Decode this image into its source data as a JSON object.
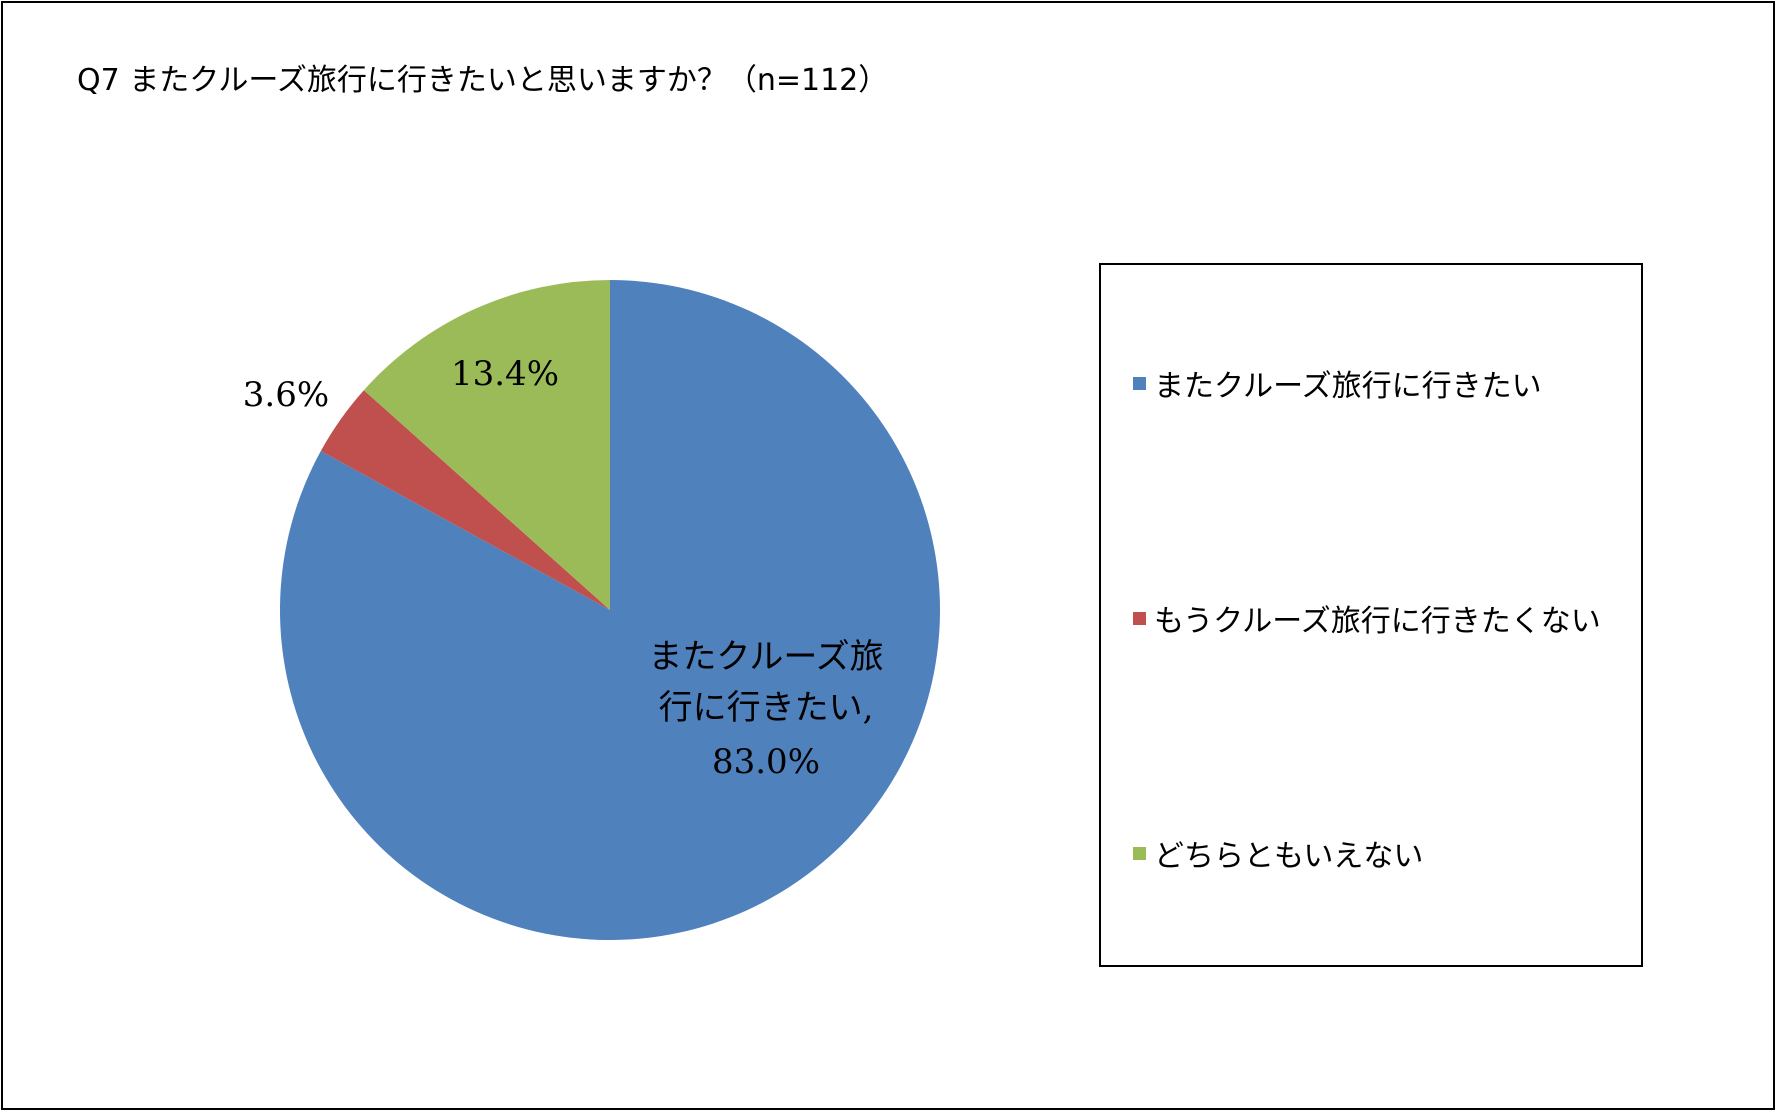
{
  "chart_data": {
    "type": "pie",
    "title": "Q7 またクルーズ旅行に行きたいと思いますか？（n=112）",
    "slices": [
      {
        "name": "またクルーズ旅行に行きたい",
        "value": 83.0,
        "label": "83.0%",
        "color": "#4F81BD"
      },
      {
        "name": "もうクルーズ旅行に行きたくない",
        "value": 3.6,
        "label": "3.6%",
        "color": "#C0504D"
      },
      {
        "name": "どちらともいえない",
        "value": 13.4,
        "label": "13.4%",
        "color": "#9BBB59"
      }
    ],
    "data_label_main": [
      "またクルーズ旅",
      "行に行きたい,"
    ],
    "legend_position": "right",
    "start_angle": "top",
    "direction": "clockwise"
  }
}
